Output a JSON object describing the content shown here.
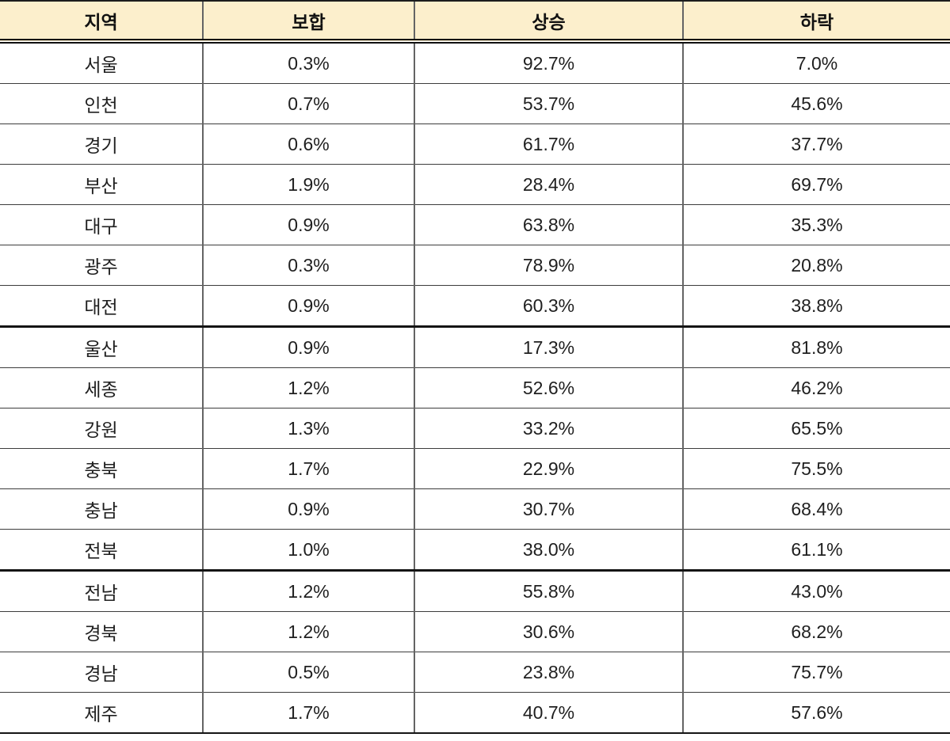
{
  "chart_data": {
    "type": "table",
    "columns": [
      "지역",
      "보합",
      "상승",
      "하락"
    ],
    "rows": [
      [
        "서울",
        "0.3%",
        "92.7%",
        "7.0%"
      ],
      [
        "인천",
        "0.7%",
        "53.7%",
        "45.6%"
      ],
      [
        "경기",
        "0.6%",
        "61.7%",
        "37.7%"
      ],
      [
        "부산",
        "1.9%",
        "28.4%",
        "69.7%"
      ],
      [
        "대구",
        "0.9%",
        "63.8%",
        "35.3%"
      ],
      [
        "광주",
        "0.3%",
        "78.9%",
        "20.8%"
      ],
      [
        "대전",
        "0.9%",
        "60.3%",
        "38.8%"
      ],
      [
        "울산",
        "0.9%",
        "17.3%",
        "81.8%"
      ],
      [
        "세종",
        "1.2%",
        "52.6%",
        "46.2%"
      ],
      [
        "강원",
        "1.3%",
        "33.2%",
        "65.5%"
      ],
      [
        "충북",
        "1.7%",
        "22.9%",
        "75.5%"
      ],
      [
        "충남",
        "0.9%",
        "30.7%",
        "68.4%"
      ],
      [
        "전북",
        "1.0%",
        "38.0%",
        "61.1%"
      ],
      [
        "전남",
        "1.2%",
        "55.8%",
        "43.0%"
      ],
      [
        "경북",
        "1.2%",
        "30.6%",
        "68.2%"
      ],
      [
        "경남",
        "0.5%",
        "23.8%",
        "75.7%"
      ],
      [
        "제주",
        "1.7%",
        "40.7%",
        "57.6%"
      ]
    ],
    "thick_border_row_indices": [
      7,
      13
    ],
    "layout_hints": {
      "header_background": "#FCEFCC",
      "header_separator": "double-line",
      "text_color": "#1f1f1f",
      "thin_border_color": "#3c3c3c",
      "thick_border_color": "#141414",
      "vertical_border_color": "#646464"
    }
  }
}
